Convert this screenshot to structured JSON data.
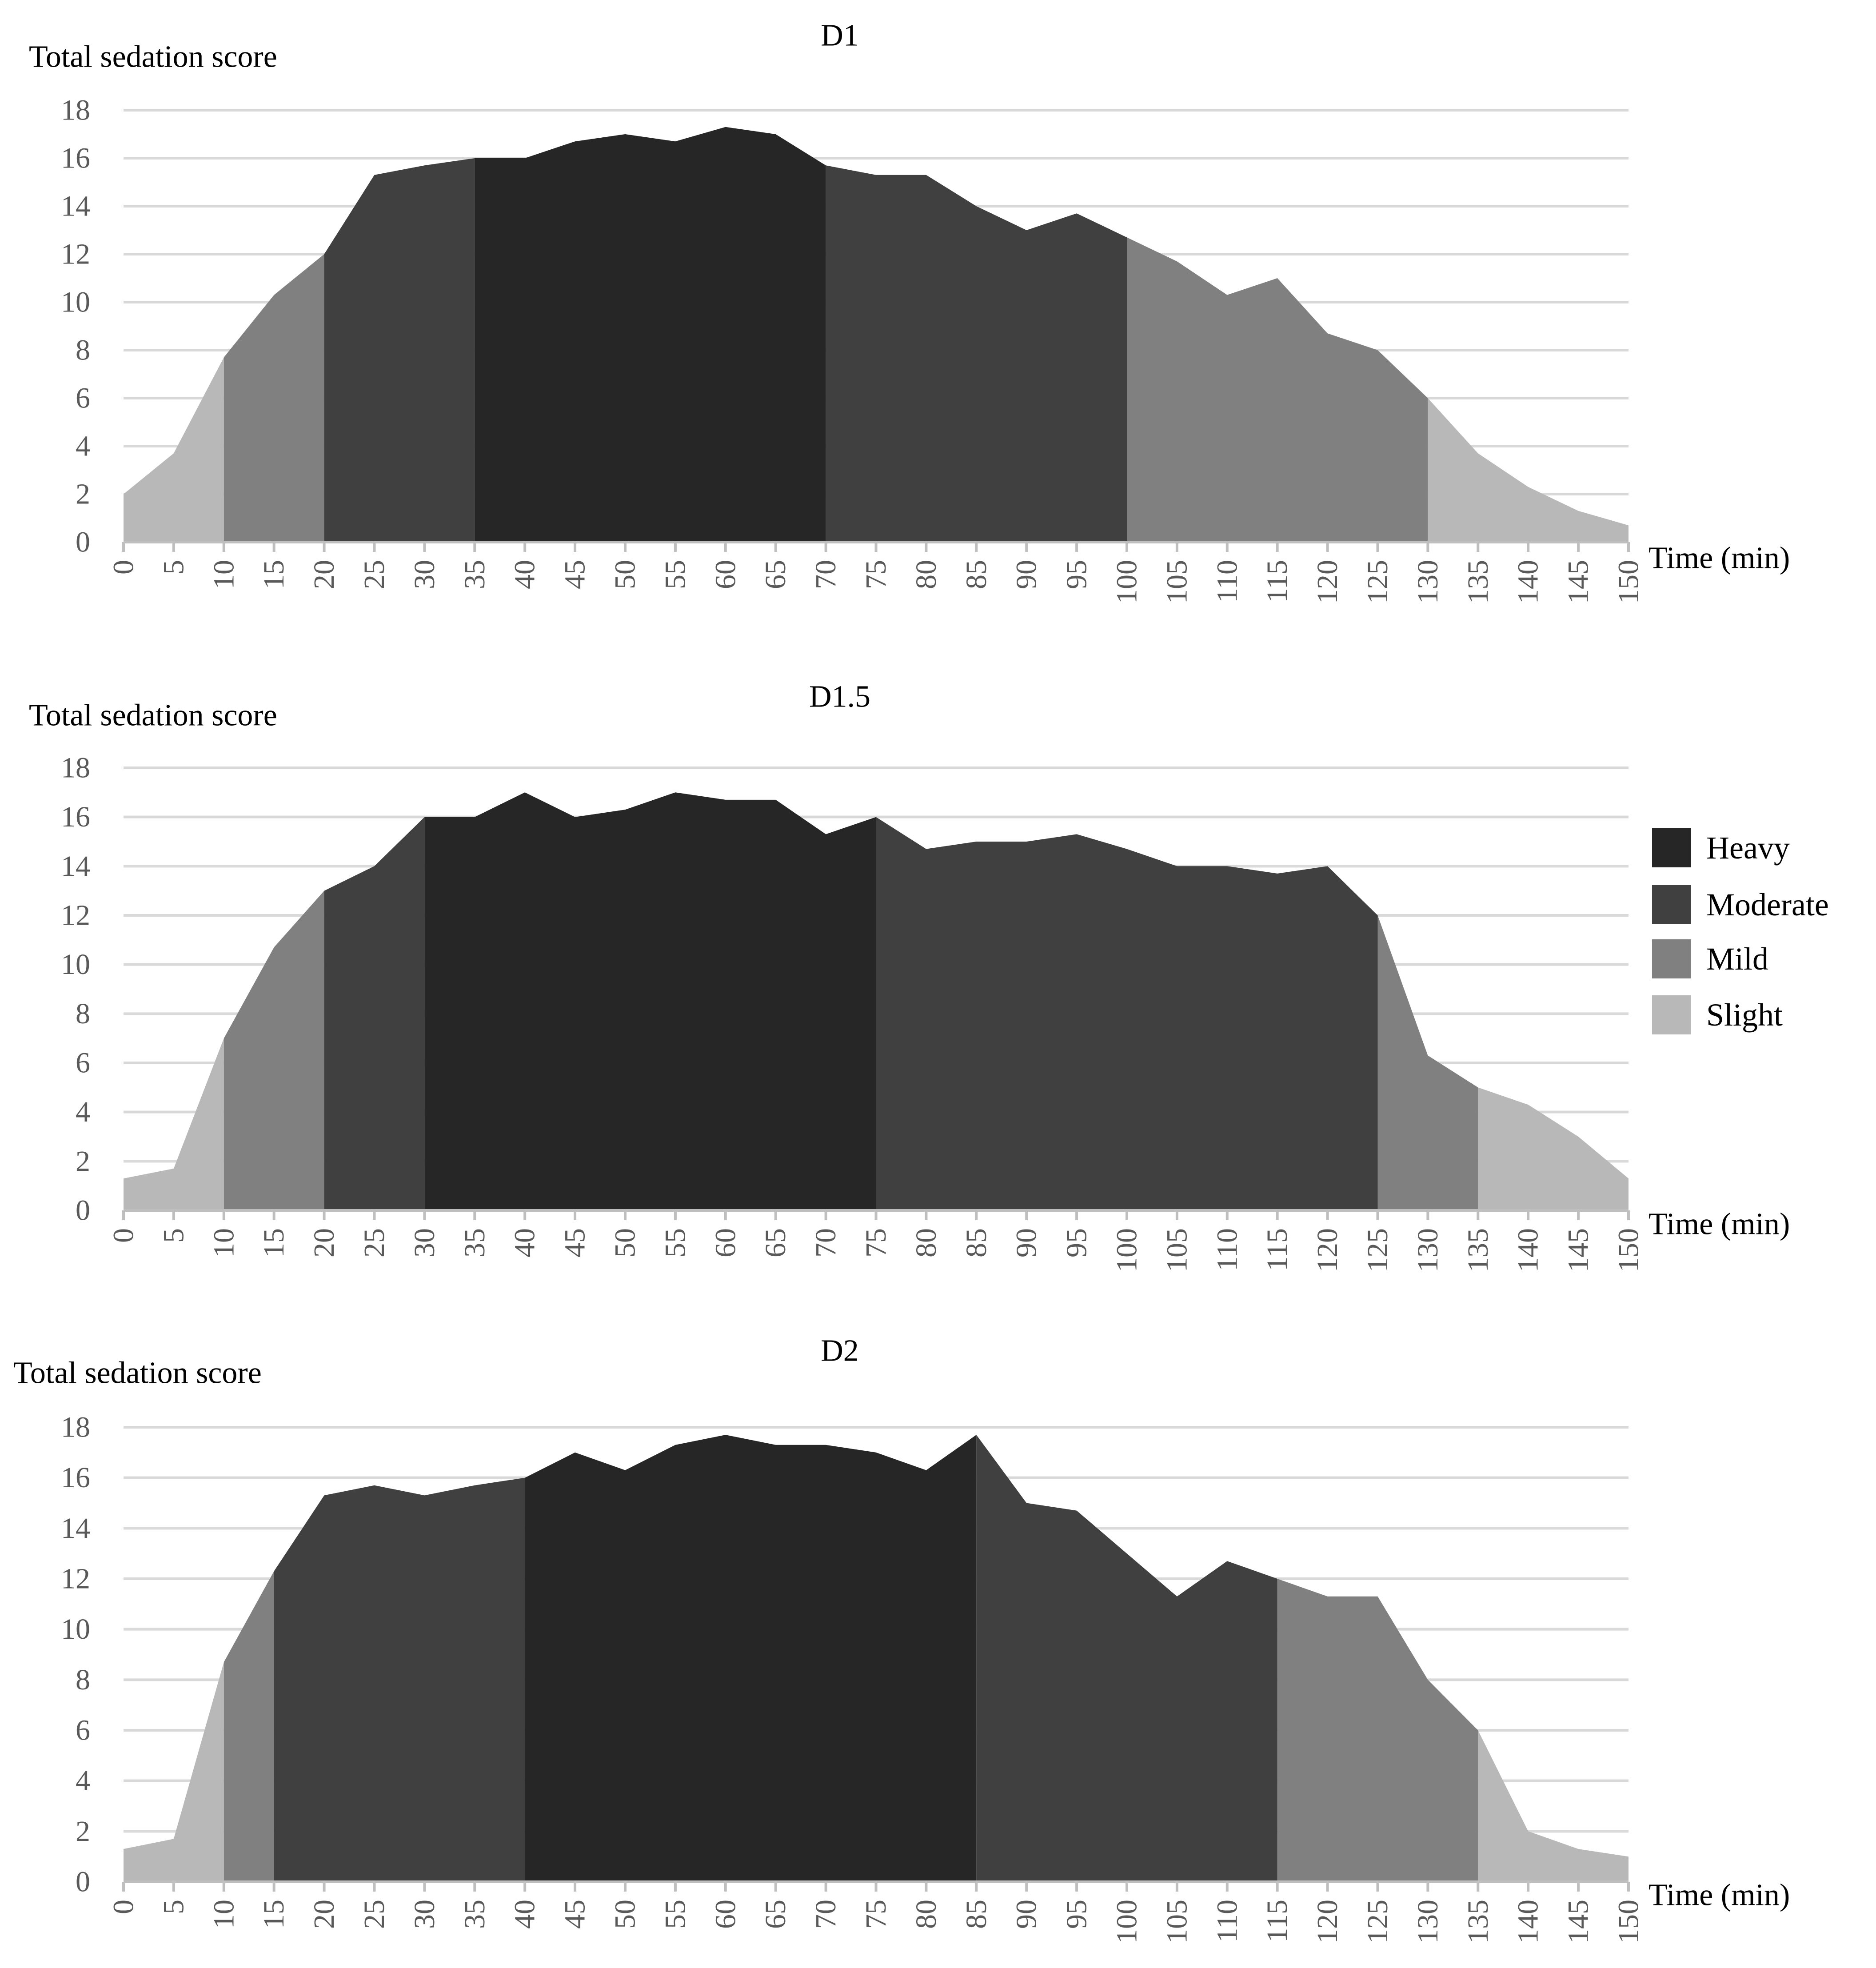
{
  "colors": {
    "heavy": "#262626",
    "moderate": "#404040",
    "mild": "#808080",
    "slight": "#b8b8b8"
  },
  "legend": [
    {
      "key": "heavy",
      "label": "Heavy"
    },
    {
      "key": "moderate",
      "label": "Moderate"
    },
    {
      "key": "mild",
      "label": "Mild"
    },
    {
      "key": "slight",
      "label": "Slight"
    }
  ],
  "chart_data": [
    {
      "type": "area",
      "title": "D1",
      "ylabel": "Total sedation score",
      "xlabel": "Time (min)",
      "ylim": [
        0,
        18
      ],
      "yticks": [
        0,
        2,
        4,
        6,
        8,
        10,
        12,
        14,
        16,
        18
      ],
      "x": [
        0,
        5,
        10,
        15,
        20,
        25,
        30,
        35,
        40,
        45,
        50,
        55,
        60,
        65,
        70,
        75,
        80,
        85,
        90,
        95,
        100,
        105,
        110,
        115,
        120,
        125,
        130,
        135,
        140,
        145,
        150
      ],
      "values": [
        2.0,
        3.7,
        7.7,
        10.3,
        12.0,
        15.3,
        15.7,
        16.0,
        16.0,
        16.7,
        17.0,
        16.7,
        17.3,
        17.0,
        15.7,
        15.3,
        15.3,
        14.0,
        13.0,
        13.7,
        12.7,
        11.7,
        10.3,
        11.0,
        8.7,
        8.0,
        6.0,
        3.7,
        2.3,
        1.3,
        0.7
      ],
      "segments": [
        {
          "level": "slight",
          "from": 0,
          "to": 10
        },
        {
          "level": "mild",
          "from": 10,
          "to": 20
        },
        {
          "level": "moderate",
          "from": 20,
          "to": 35
        },
        {
          "level": "heavy",
          "from": 35,
          "to": 70
        },
        {
          "level": "moderate",
          "from": 70,
          "to": 100
        },
        {
          "level": "mild",
          "from": 100,
          "to": 130
        },
        {
          "level": "slight",
          "from": 130,
          "to": 150
        }
      ]
    },
    {
      "type": "area",
      "title": "D1.5",
      "ylabel": "Total sedation score",
      "xlabel": "Time (min)",
      "ylim": [
        0,
        18
      ],
      "yticks": [
        0,
        2,
        4,
        6,
        8,
        10,
        12,
        14,
        16,
        18
      ],
      "x": [
        0,
        5,
        10,
        15,
        20,
        25,
        30,
        35,
        40,
        45,
        50,
        55,
        60,
        65,
        70,
        75,
        80,
        85,
        90,
        95,
        100,
        105,
        110,
        115,
        120,
        125,
        130,
        135,
        140,
        145,
        150
      ],
      "values": [
        1.3,
        1.7,
        7.0,
        10.7,
        13.0,
        14.0,
        16.0,
        16.0,
        17.0,
        16.0,
        16.3,
        17.0,
        16.7,
        16.7,
        15.3,
        16.0,
        14.7,
        15.0,
        15.0,
        15.3,
        14.7,
        14.0,
        14.0,
        13.7,
        14.0,
        12.0,
        6.3,
        5.0,
        4.3,
        3.0,
        1.3
      ],
      "segments": [
        {
          "level": "slight",
          "from": 0,
          "to": 10
        },
        {
          "level": "mild",
          "from": 10,
          "to": 20
        },
        {
          "level": "moderate",
          "from": 20,
          "to": 30
        },
        {
          "level": "heavy",
          "from": 30,
          "to": 75
        },
        {
          "level": "moderate",
          "from": 75,
          "to": 125
        },
        {
          "level": "mild",
          "from": 125,
          "to": 135
        },
        {
          "level": "slight",
          "from": 135,
          "to": 150
        }
      ]
    },
    {
      "type": "area",
      "title": "D2",
      "ylabel": "Total sedation score",
      "xlabel": "Time (min)",
      "ylim": [
        0,
        18
      ],
      "yticks": [
        0,
        2,
        4,
        6,
        8,
        10,
        12,
        14,
        16,
        18
      ],
      "x": [
        0,
        5,
        10,
        15,
        20,
        25,
        30,
        35,
        40,
        45,
        50,
        55,
        60,
        65,
        70,
        75,
        80,
        85,
        90,
        95,
        100,
        105,
        110,
        115,
        120,
        125,
        130,
        135,
        140,
        145,
        150
      ],
      "values": [
        1.3,
        1.7,
        8.7,
        12.3,
        15.3,
        15.7,
        15.3,
        15.7,
        16.0,
        17.0,
        16.3,
        17.3,
        17.7,
        17.3,
        17.3,
        17.0,
        16.3,
        17.7,
        15.0,
        14.7,
        13.0,
        11.3,
        12.7,
        12.0,
        11.3,
        11.3,
        8.0,
        6.0,
        2.0,
        1.3,
        1.0
      ],
      "segments": [
        {
          "level": "slight",
          "from": 0,
          "to": 10
        },
        {
          "level": "mild",
          "from": 10,
          "to": 15
        },
        {
          "level": "moderate",
          "from": 15,
          "to": 40
        },
        {
          "level": "heavy",
          "from": 40,
          "to": 85
        },
        {
          "level": "moderate",
          "from": 85,
          "to": 115
        },
        {
          "level": "mild",
          "from": 115,
          "to": 135
        },
        {
          "level": "slight",
          "from": 135,
          "to": 150
        }
      ]
    }
  ]
}
